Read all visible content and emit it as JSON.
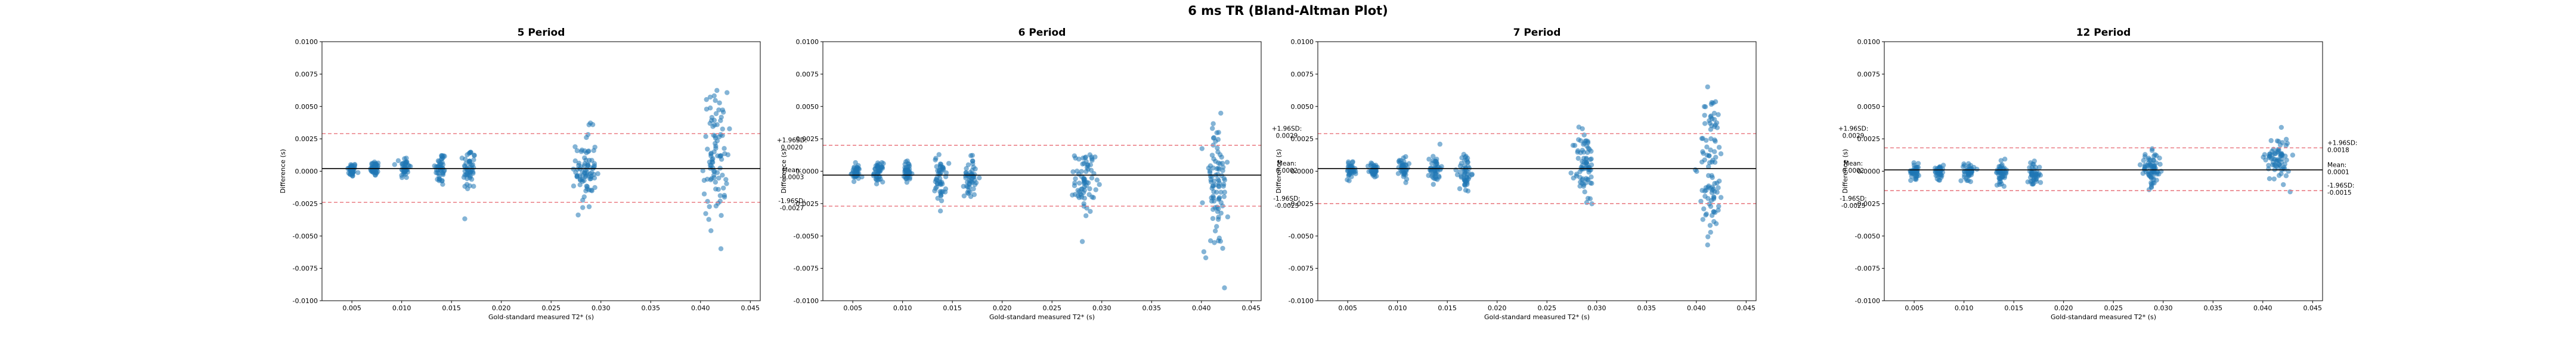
{
  "suptitle": "6 ms TR (Bland-Altman Plot)",
  "colors": {
    "points": "#1f77b4",
    "mean_line": "#000000",
    "loa_line": "#e8737b"
  },
  "chart_data": [
    {
      "type": "scatter",
      "title": "5 Period",
      "xlabel": "Gold-standard measured T2* (s)",
      "ylabel": "Difference (s)",
      "xlim": [
        0.002,
        0.046
      ],
      "ylim": [
        -0.01,
        0.01
      ],
      "xticks": [
        "0.005",
        "0.010",
        "0.015",
        "0.020",
        "0.025",
        "0.030",
        "0.035",
        "0.040",
        "0.045"
      ],
      "yticks": [
        "-0.0100",
        "-0.0075",
        "-0.0050",
        "-0.0025",
        "0.0000",
        "0.0025",
        "0.0050",
        "0.0075",
        "0.0100"
      ],
      "mean": 0.0002,
      "upper_loa": 0.0029,
      "lower_loa": -0.0024,
      "annotations": [],
      "clusters": [
        {
          "x": 0.005,
          "sdx": 0.00022,
          "mean": 0.0001,
          "sd": 0.00028,
          "n": 40
        },
        {
          "x": 0.0073,
          "sdx": 0.00022,
          "mean": 0.0002,
          "sd": 0.0003,
          "n": 40
        },
        {
          "x": 0.0103,
          "sdx": 0.00025,
          "mean": 0.0003,
          "sd": 0.00045,
          "n": 40
        },
        {
          "x": 0.0139,
          "sdx": 0.00028,
          "mean": 0.0002,
          "sd": 0.0007,
          "n": 45
        },
        {
          "x": 0.0168,
          "sdx": 0.0003,
          "mean": 0.0001,
          "sd": 0.0009,
          "n": 50
        },
        {
          "x": 0.0285,
          "sdx": 0.0005,
          "mean": 0.0001,
          "sd": 0.0015,
          "n": 80
        },
        {
          "x": 0.0415,
          "sdx": 0.0006,
          "mean": 0.0012,
          "sd": 0.0025,
          "n": 90
        }
      ]
    },
    {
      "type": "scatter",
      "title": "6 Period",
      "xlabel": "Gold-standard measured T2* (s)",
      "ylabel": "Difference (s)",
      "xlim": [
        0.002,
        0.046
      ],
      "ylim": [
        -0.01,
        0.01
      ],
      "xticks": [
        "0.005",
        "0.010",
        "0.015",
        "0.020",
        "0.025",
        "0.030",
        "0.035",
        "0.040",
        "0.045"
      ],
      "yticks": [
        "-0.0100",
        "-0.0075",
        "-0.0050",
        "-0.0025",
        "0.0000",
        "0.0025",
        "0.0050",
        "0.0075",
        "0.0100"
      ],
      "mean": -0.0003,
      "upper_loa": 0.002,
      "lower_loa": -0.0027,
      "annotations": [
        {
          "text": "+1.96SD:",
          "y": 0.002,
          "dy": -5
        },
        {
          "text": "0.0020",
          "y": 0.002,
          "dy": 7
        },
        {
          "text": "Mean:",
          "y": -0.0003,
          "dy": -5
        },
        {
          "text": "-0.0003",
          "y": -0.0003,
          "dy": 7
        },
        {
          "text": "-1.96SD:",
          "y": -0.0027,
          "dy": -5
        },
        {
          "text": "-0.0027",
          "y": -0.0027,
          "dy": 7
        }
      ],
      "clusters": [
        {
          "x": 0.0053,
          "sdx": 0.00022,
          "mean": -0.0001,
          "sd": 0.0003,
          "n": 40
        },
        {
          "x": 0.0076,
          "sdx": 0.00022,
          "mean": -0.0001,
          "sd": 0.00035,
          "n": 40
        },
        {
          "x": 0.0105,
          "sdx": 0.00025,
          "mean": -0.0001,
          "sd": 0.00045,
          "n": 40
        },
        {
          "x": 0.0138,
          "sdx": 0.00028,
          "mean": -0.0006,
          "sd": 0.0009,
          "n": 50
        },
        {
          "x": 0.0168,
          "sdx": 0.0003,
          "mean": -0.0004,
          "sd": 0.0008,
          "n": 50
        },
        {
          "x": 0.0283,
          "sdx": 0.0005,
          "mean": -0.0008,
          "sd": 0.0012,
          "n": 70
        },
        {
          "x": 0.0415,
          "sdx": 0.0006,
          "mean": -0.0012,
          "sd": 0.0026,
          "n": 90
        }
      ]
    },
    {
      "type": "scatter",
      "title": "7 Period",
      "xlabel": "Gold-standard measured T2* (s)",
      "ylabel": "Difference (s)",
      "xlim": [
        0.002,
        0.046
      ],
      "ylim": [
        -0.01,
        0.01
      ],
      "xticks": [
        "0.005",
        "0.010",
        "0.015",
        "0.020",
        "0.025",
        "0.030",
        "0.035",
        "0.040",
        "0.045"
      ],
      "yticks": [
        "-0.0100",
        "-0.0075",
        "-0.0050",
        "-0.0025",
        "0.0000",
        "0.0025",
        "0.0050",
        "0.0075",
        "0.0100"
      ],
      "mean": 0.0002,
      "upper_loa": 0.0029,
      "lower_loa": -0.0025,
      "annotations": [
        {
          "text": "+1.96SD:",
          "y": 0.0029,
          "dy": -5
        },
        {
          "text": "0.0029",
          "y": 0.0029,
          "dy": 7
        },
        {
          "text": "Mean:",
          "y": 0.0002,
          "dy": -5
        },
        {
          "text": "0.0002",
          "y": 0.0002,
          "dy": 7
        },
        {
          "text": "-1.96SD:",
          "y": -0.0025,
          "dy": -5
        },
        {
          "text": "-0.0025",
          "y": -0.0025,
          "dy": 7
        }
      ],
      "clusters": [
        {
          "x": 0.0053,
          "sdx": 0.00022,
          "mean": 0.0,
          "sd": 0.0003,
          "n": 40
        },
        {
          "x": 0.0076,
          "sdx": 0.00022,
          "mean": 0.0001,
          "sd": 0.0003,
          "n": 40
        },
        {
          "x": 0.0106,
          "sdx": 0.00025,
          "mean": 0.0003,
          "sd": 0.00045,
          "n": 40
        },
        {
          "x": 0.0138,
          "sdx": 0.00028,
          "mean": 0.0002,
          "sd": 0.00055,
          "n": 45
        },
        {
          "x": 0.0168,
          "sdx": 0.0003,
          "mean": -0.0001,
          "sd": 0.0008,
          "n": 50
        },
        {
          "x": 0.0288,
          "sdx": 0.0005,
          "mean": 0.0003,
          "sd": 0.0015,
          "n": 75
        },
        {
          "x": 0.0415,
          "sdx": 0.0006,
          "mean": 0.0005,
          "sd": 0.0029,
          "n": 95
        }
      ]
    },
    {
      "type": "scatter",
      "title": "12 Period",
      "xlabel": "Gold-standard measured T2* (s)",
      "ylabel": "Difference (s)",
      "xlim": [
        0.002,
        0.046
      ],
      "ylim": [
        -0.01,
        0.01
      ],
      "xticks": [
        "0.005",
        "0.010",
        "0.015",
        "0.020",
        "0.025",
        "0.030",
        "0.035",
        "0.040",
        "0.045"
      ],
      "yticks": [
        "-0.0100",
        "-0.0075",
        "-0.0050",
        "-0.0025",
        "0.0000",
        "0.0025",
        "0.0050",
        "0.0075",
        "0.0100"
      ],
      "mean": 0.0001,
      "upper_loa": 0.0018,
      "lower_loa": -0.0015,
      "annotations_left": [
        {
          "text": "+1.96SD:",
          "y": 0.0029,
          "dy": -5
        },
        {
          "text": "0.0029",
          "y": 0.0029,
          "dy": 7
        },
        {
          "text": "Mean:",
          "y": 0.0002,
          "dy": -5
        },
        {
          "text": "0.0002",
          "y": 0.0002,
          "dy": 7
        },
        {
          "text": "-1.96SD:",
          "y": -0.0025,
          "dy": -5
        },
        {
          "text": "-0.0025",
          "y": -0.0025,
          "dy": 7
        }
      ],
      "annotations": [
        {
          "text": "+1.96SD:",
          "y": 0.0018,
          "dy": -5
        },
        {
          "text": "0.0018",
          "y": 0.0018,
          "dy": 7
        },
        {
          "text": "Mean:",
          "y": 0.0001,
          "dy": -5
        },
        {
          "text": "0.0001",
          "y": 0.0001,
          "dy": 7
        },
        {
          "text": "-1.96SD:",
          "y": -0.0015,
          "dy": -5
        },
        {
          "text": "-0.0015",
          "y": -0.0015,
          "dy": 7
        }
      ],
      "clusters": [
        {
          "x": 0.0051,
          "sdx": 0.00022,
          "mean": 0.0,
          "sd": 0.0003,
          "n": 40
        },
        {
          "x": 0.0075,
          "sdx": 0.00022,
          "mean": 0.0,
          "sd": 0.0003,
          "n": 40
        },
        {
          "x": 0.0105,
          "sdx": 0.00025,
          "mean": 0.0,
          "sd": 0.00035,
          "n": 40
        },
        {
          "x": 0.0138,
          "sdx": 0.00028,
          "mean": -0.0001,
          "sd": 0.0004,
          "n": 45
        },
        {
          "x": 0.017,
          "sdx": 0.0003,
          "mean": -0.0003,
          "sd": 0.00045,
          "n": 45
        },
        {
          "x": 0.0288,
          "sdx": 0.0005,
          "mean": 0.0001,
          "sd": 0.00065,
          "n": 70
        },
        {
          "x": 0.0415,
          "sdx": 0.0006,
          "mean": 0.001,
          "sd": 0.0009,
          "n": 70
        }
      ]
    }
  ]
}
